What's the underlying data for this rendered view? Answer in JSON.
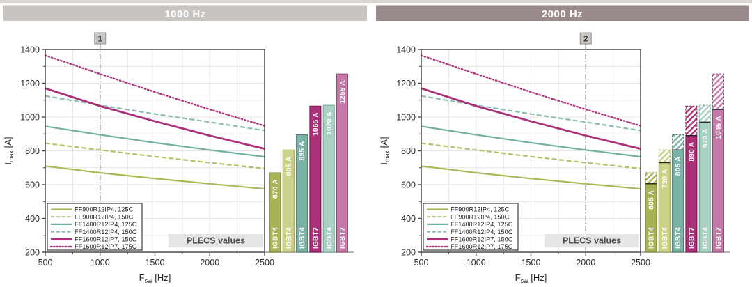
{
  "header": {
    "left_title": "1000 Hz",
    "right_title": "2000 Hz"
  },
  "plecs_label": "PLECS values",
  "colors": {
    "left_title_bg": "#c8c4c1",
    "right_title_bg": "#9a8b8b",
    "top_strip": "#d9d6d4",
    "grid": "#e5e5e5",
    "axis": "#3f3f3f",
    "tick_text": "#2b2b2b",
    "marker_line": "#6a6a6a",
    "marker_box_bg": "#c9c6c3",
    "marker_box_border": "#8f8f8f",
    "plecs_bg": "#e6e5e3",
    "plecs_text": "#4c4c4c",
    "legend_border": "#3f3f3f",
    "bar_axis_line": "#9a9a9a",
    "bar_label_text": "#ffffff"
  },
  "axes": {
    "x_main": "F",
    "x_sub": "sw",
    "x_rest": " [Hz]",
    "y_main": "I",
    "y_sub": "max",
    "y_rest": " [A]",
    "xlim": [
      500,
      2500
    ],
    "ylim": [
      200,
      1400
    ],
    "x_major": 500,
    "x_minor": 250,
    "y_major": 200,
    "y_minor": 100,
    "x_ticks": [
      "500",
      "1000",
      "1500",
      "2000",
      "2500"
    ],
    "y_ticks": [
      "200",
      "400",
      "600",
      "800",
      "1000",
      "1200",
      "1400"
    ]
  },
  "chart_data": [
    {
      "type": "line+bar",
      "title": "1000 Hz",
      "xlabel": "F_sw [Hz]",
      "ylabel": "I_max [A]",
      "xlim": [
        500,
        2500
      ],
      "ylim": [
        200,
        1400
      ],
      "grid": true,
      "legend_position": "lower left",
      "marker": {
        "label": "1",
        "x": 1000
      },
      "x": [
        500,
        1000,
        1500,
        2000,
        2500
      ],
      "series": [
        {
          "name": "FF900R12IP4, 125C",
          "style": "solid",
          "color": "#aeb757",
          "width": 2.2,
          "values": [
            710,
            670,
            636,
            605,
            575
          ]
        },
        {
          "name": "FF900R12IP4, 150C",
          "style": "dashed",
          "color": "#b9c06b",
          "width": 2.2,
          "values": [
            845,
            805,
            766,
            730,
            695
          ]
        },
        {
          "name": "FF1400R12IP4, 125C",
          "style": "solid",
          "color": "#74afa3",
          "width": 2.2,
          "values": [
            945,
            895,
            848,
            805,
            765
          ]
        },
        {
          "name": "FF1400R12IP4, 150C",
          "style": "dashed",
          "color": "#8bbcb0",
          "width": 2.2,
          "values": [
            1125,
            1070,
            1018,
            970,
            920
          ]
        },
        {
          "name": "FF1600R12IP7, 150C",
          "style": "solid",
          "color": "#a93079",
          "width": 2.8,
          "values": [
            1170,
            1065,
            975,
            890,
            812
          ]
        },
        {
          "name": "FF1600R12IP7, 175C",
          "style": "dotted",
          "color": "#ae3b7e",
          "width": 2.4,
          "values": [
            1365,
            1255,
            1148,
            1045,
            948
          ]
        }
      ],
      "bars": [
        {
          "group": "IGBT4",
          "label": "670 A",
          "value": 670,
          "hatch_to": null,
          "fill": "#a9b254",
          "border": "#757c33"
        },
        {
          "group": "IGBT4",
          "label": "805 A",
          "value": 805,
          "hatch_to": null,
          "fill": "#cbd289",
          "border": "#959c52"
        },
        {
          "group": "IGBT4",
          "label": "895 A",
          "value": 895,
          "hatch_to": null,
          "fill": "#79b2a6",
          "border": "#4a7e72"
        },
        {
          "group": "IGBT7",
          "label": "1065 A",
          "value": 1065,
          "hatch_to": null,
          "fill": "#ab3078",
          "border": "#77134e"
        },
        {
          "group": "IGBT4",
          "label": "1070 A",
          "value": 1070,
          "hatch_to": null,
          "fill": "#abd0c5",
          "border": "#74a295"
        },
        {
          "group": "IGBT7",
          "label": "1255 A",
          "value": 1255,
          "hatch_to": null,
          "fill": "#c579a8",
          "border": "#94477a"
        }
      ],
      "annotations": [
        "PLECS values"
      ]
    },
    {
      "type": "line+bar",
      "title": "2000 Hz",
      "xlabel": "F_sw [Hz]",
      "ylabel": "I_max [A]",
      "xlim": [
        500,
        2500
      ],
      "ylim": [
        200,
        1400
      ],
      "grid": true,
      "legend_position": "lower left",
      "marker": {
        "label": "2",
        "x": 2000
      },
      "x": [
        500,
        1000,
        1500,
        2000,
        2500
      ],
      "series": [
        {
          "name": "FF900R12IP4, 125C",
          "style": "solid",
          "color": "#aeb757",
          "width": 2.2,
          "values": [
            710,
            670,
            636,
            605,
            575
          ]
        },
        {
          "name": "FF900R12IP4, 150C",
          "style": "dashed",
          "color": "#b9c06b",
          "width": 2.2,
          "values": [
            845,
            805,
            766,
            730,
            695
          ]
        },
        {
          "name": "FF1400R12IP4, 125C",
          "style": "solid",
          "color": "#74afa3",
          "width": 2.2,
          "values": [
            945,
            895,
            848,
            805,
            765
          ]
        },
        {
          "name": "FF1400R12IP4, 150C",
          "style": "dashed",
          "color": "#8bbcb0",
          "width": 2.2,
          "values": [
            1125,
            1070,
            1018,
            970,
            920
          ]
        },
        {
          "name": "FF1600R12IP7, 150C",
          "style": "solid",
          "color": "#a93079",
          "width": 2.8,
          "values": [
            1170,
            1065,
            975,
            890,
            812
          ]
        },
        {
          "name": "FF1600R12IP7, 175C",
          "style": "dotted",
          "color": "#ae3b7e",
          "width": 2.4,
          "values": [
            1365,
            1255,
            1148,
            1045,
            948
          ]
        }
      ],
      "bars": [
        {
          "group": "IGBT4",
          "label": "605 A",
          "value": 605,
          "hatch_to": 670,
          "fill": "#a9b254",
          "border": "#757c33"
        },
        {
          "group": "IGBT4",
          "label": "730 A",
          "value": 730,
          "hatch_to": 805,
          "fill": "#cbd289",
          "border": "#959c52"
        },
        {
          "group": "IGBT4",
          "label": "805 A",
          "value": 805,
          "hatch_to": 895,
          "fill": "#79b2a6",
          "border": "#4a7e72"
        },
        {
          "group": "IGBT7",
          "label": "890 A",
          "value": 890,
          "hatch_to": 1065,
          "fill": "#ab3078",
          "border": "#77134e"
        },
        {
          "group": "IGBT4",
          "label": "970 A",
          "value": 970,
          "hatch_to": 1070,
          "fill": "#abd0c5",
          "border": "#74a295"
        },
        {
          "group": "IGBT7",
          "label": "1045 A",
          "value": 1045,
          "hatch_to": 1255,
          "fill": "#c579a8",
          "border": "#94477a"
        }
      ],
      "annotations": [
        "PLECS values"
      ]
    }
  ]
}
